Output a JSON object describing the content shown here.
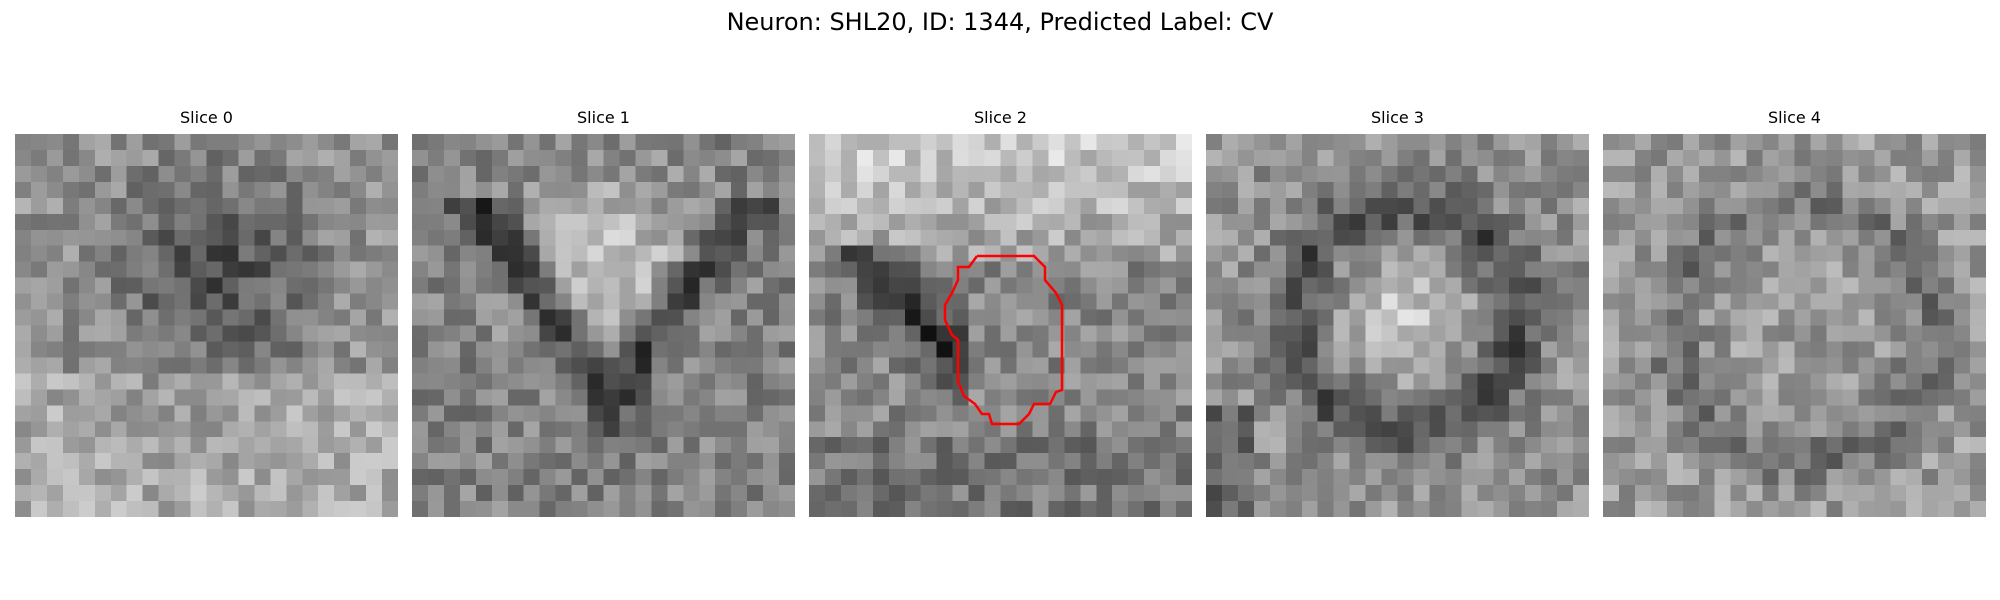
{
  "figure": {
    "title": "Neuron: SHL20, ID: 1344, Predicted Label: CV"
  },
  "panels": [
    {
      "title": "Slice 0",
      "pattern": "dark-upper-blob",
      "seed": 11,
      "has_roi": false
    },
    {
      "title": "Slice 1",
      "pattern": "bright-center-dark-vshape",
      "seed": 23,
      "has_roi": false
    },
    {
      "title": "Slice 2",
      "pattern": "bright-top-dark-left-diagonal",
      "seed": 37,
      "has_roi": true
    },
    {
      "title": "Slice 3",
      "pattern": "dark-ring-bright-center",
      "seed": 51,
      "has_roi": false
    },
    {
      "title": "Slice 4",
      "pattern": "faint-ring",
      "seed": 67,
      "has_roi": false
    }
  ],
  "roi": {
    "color": "#ff0000"
  },
  "colormap": "gray"
}
